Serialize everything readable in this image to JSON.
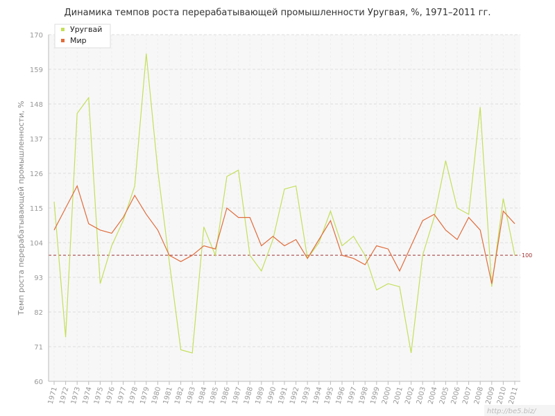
{
  "chart_data": {
    "type": "line",
    "title": "Динамика темпов роста перерабатывающей промышленности Уругвая, %, 1971–2011 гг.",
    "ylabel": "Темп роста перерабатывающей промышленности, %",
    "xlabel": "",
    "ylim": [
      60,
      170
    ],
    "yticks": [
      60,
      71,
      82,
      93,
      104,
      115,
      126,
      137,
      148,
      159,
      170
    ],
    "x": [
      "1971",
      "1972",
      "1973",
      "1974",
      "1975",
      "1976",
      "1977",
      "1978",
      "1979",
      "1980",
      "1981",
      "1982",
      "1983",
      "1984",
      "1985",
      "1986",
      "1987",
      "1988",
      "1989",
      "1990",
      "1991",
      "1992",
      "1993",
      "1994",
      "1995",
      "1996",
      "1997",
      "1998",
      "1999",
      "2000",
      "2001",
      "2002",
      "2003",
      "2004",
      "2005",
      "2006",
      "2007",
      "2008",
      "2009",
      "2010",
      "2011"
    ],
    "series": [
      {
        "name": "Уругвай",
        "color": "#c3df5a",
        "values": [
          117,
          74,
          145,
          150,
          91,
          103,
          111,
          122,
          164,
          127,
          98,
          70,
          69,
          109,
          100,
          125,
          127,
          100,
          95,
          105,
          121,
          122,
          99,
          104,
          114,
          103,
          106,
          100,
          89,
          91,
          90,
          69,
          100,
          112,
          130,
          115,
          113,
          147,
          90,
          118,
          100
        ]
      },
      {
        "name": "Мир",
        "color": "#e06c3c",
        "values": [
          108,
          115,
          122,
          110,
          108,
          107,
          112,
          119,
          113,
          108,
          100,
          98,
          100,
          103,
          102,
          115,
          112,
          112,
          103,
          106,
          103,
          105,
          99,
          105,
          111,
          100,
          99,
          97,
          103,
          102,
          95,
          103,
          111,
          113,
          108,
          105,
          112,
          108,
          91,
          114,
          110
        ]
      }
    ],
    "reference_line": {
      "value": 100,
      "label": "100",
      "color": "#a03030"
    },
    "grid": true,
    "legend": "top-left"
  },
  "watermark": "http://be5.biz/"
}
